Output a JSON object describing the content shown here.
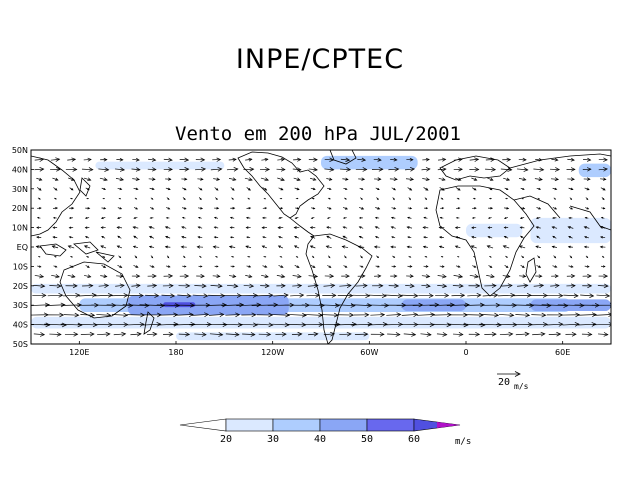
{
  "header": {
    "agency": "INPE/CPTEC",
    "title": "Vento em 200 hPa JUL/2001"
  },
  "map": {
    "lat_labels": [
      "50N",
      "40N",
      "30N",
      "20N",
      "10N",
      "EQ",
      "10S",
      "20S",
      "30S",
      "40S",
      "50S"
    ],
    "lon_labels": [
      "120E",
      "180",
      "120W",
      "60W",
      "0",
      "60E"
    ],
    "lat_range": [
      -50,
      50
    ],
    "lon_range": [
      90,
      450
    ],
    "shading": [
      {
        "name": "sh-jet-core-30s",
        "lon": [
          120,
          425
        ],
        "lat": [
          -33.5,
          -26.5
        ],
        "level": 2
      },
      {
        "name": "sh-jet-pacific-40s",
        "lon": [
          150,
          250
        ],
        "lat": [
          -35,
          -25
        ],
        "level": 3
      },
      {
        "name": "sh-jet-max-180",
        "lon": [
          172,
          192
        ],
        "lat": [
          -31,
          -28.5
        ],
        "level": 5
      },
      {
        "name": "sh-jet-atlantic",
        "lon": [
          320,
          360
        ],
        "lat": [
          -33,
          -27
        ],
        "level": 3
      },
      {
        "name": "sh-jet-indian",
        "lon": [
          400,
          450
        ],
        "lat": [
          -33,
          -27
        ],
        "level": 3
      },
      {
        "name": "sh-band-20s",
        "lon": [
          90,
          450
        ],
        "lat": [
          -24,
          -19
        ],
        "level": 1
      },
      {
        "name": "sh-band-40s",
        "lon": [
          90,
          450
        ],
        "lat": [
          -42,
          -36
        ],
        "level": 1
      },
      {
        "name": "sh-band-45s",
        "lon": [
          180,
          300
        ],
        "lat": [
          -48,
          -44
        ],
        "level": 1
      },
      {
        "name": "nh-jet-pacific",
        "lon": [
          130,
          210
        ],
        "lat": [
          40,
          44
        ],
        "level": 1
      },
      {
        "name": "nh-jet-atlantic",
        "lon": [
          270,
          330
        ],
        "lat": [
          40,
          47
        ],
        "level": 2
      },
      {
        "name": "nh-jet-asia",
        "lon": [
          430,
          450
        ],
        "lat": [
          36,
          43
        ],
        "level": 2
      },
      {
        "name": "tropical-easterly-indian",
        "lon": [
          400,
          450
        ],
        "lat": [
          2,
          15
        ],
        "level": 1
      },
      {
        "name": "tropical-easterly-africa",
        "lon": [
          360,
          395
        ],
        "lat": [
          5,
          12
        ],
        "level": 1
      }
    ],
    "vector_rows": [
      {
        "lat": 45,
        "u": 12,
        "v": 0
      },
      {
        "lat": 40,
        "u": 15,
        "v": 0
      },
      {
        "lat": 35,
        "u": 10,
        "v": -2
      },
      {
        "lat": 30,
        "u": 6,
        "v": -3
      },
      {
        "lat": 25,
        "u": 3,
        "v": -2
      },
      {
        "lat": 20,
        "u": 6,
        "v": -1
      },
      {
        "lat": 15,
        "u": -5,
        "v": 0
      },
      {
        "lat": 10,
        "u": -7,
        "v": 1
      },
      {
        "lat": 5,
        "u": -6,
        "v": 2
      },
      {
        "lat": 0,
        "u": -8,
        "v": 2
      },
      {
        "lat": -5,
        "u": 3,
        "v": -2
      },
      {
        "lat": -10,
        "u": 6,
        "v": -2
      },
      {
        "lat": -15,
        "u": 12,
        "v": -1
      },
      {
        "lat": -20,
        "u": 16,
        "v": 0
      },
      {
        "lat": -25,
        "u": 24,
        "v": 0
      },
      {
        "lat": -30,
        "u": 36,
        "v": 0
      },
      {
        "lat": -35,
        "u": 26,
        "v": 0
      },
      {
        "lat": -40,
        "u": 30,
        "v": 0
      },
      {
        "lat": -45,
        "u": 18,
        "v": 0
      }
    ],
    "vector_lon_step": 10
  },
  "reference_vector": {
    "value": "20",
    "units": "m/s"
  },
  "colorbar": {
    "ticks": [
      "20",
      "30",
      "40",
      "50",
      "60"
    ],
    "units": "m/s",
    "colors": [
      "#ffffff",
      "#dbe9ff",
      "#aecdfe",
      "#8aa6f5",
      "#6868ee",
      "#5050e0",
      "#b010c8"
    ]
  }
}
